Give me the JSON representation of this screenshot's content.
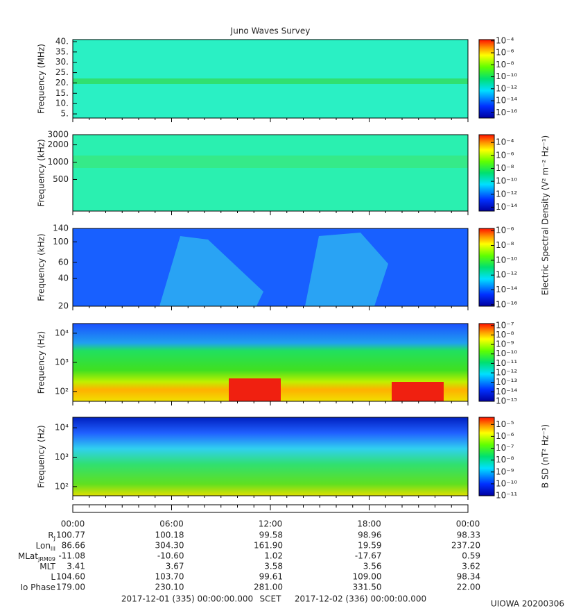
{
  "title": "Juno Waves Survey",
  "chart_data": [
    {
      "type": "spectrogram",
      "ylabel": "Frequency (MHz)",
      "yscale": "linear",
      "ylim": [
        3,
        41
      ],
      "yticks": [
        {
          "value": 5,
          "label": "5."
        },
        {
          "value": 10,
          "label": "10."
        },
        {
          "value": 15,
          "label": "15."
        },
        {
          "value": 20,
          "label": "20."
        },
        {
          "value": 25,
          "label": "25."
        },
        {
          "value": 30,
          "label": "30."
        },
        {
          "value": 35,
          "label": "35."
        },
        {
          "value": 40,
          "label": "40."
        }
      ],
      "clim": [
        1.3e-17,
        0.00016
      ],
      "cticks": [
        {
          "value": 0.0001,
          "label": "10⁻⁴"
        },
        {
          "value": 1e-06,
          "label": "10⁻⁶"
        },
        {
          "value": 1e-08,
          "label": "10⁻⁸"
        },
        {
          "value": 1e-10,
          "label": "10⁻¹⁰"
        },
        {
          "value": 1e-12,
          "label": "10⁻¹²"
        },
        {
          "value": 1e-14,
          "label": "10⁻¹⁴"
        },
        {
          "value": 1e-16,
          "label": "10⁻¹⁶"
        }
      ]
    },
    {
      "type": "spectrogram",
      "ylabel": "Frequency (kHz)",
      "yscale": "log",
      "ylim": [
        141,
        3000
      ],
      "yticks": [
        500,
        1000,
        2000,
        3000
      ],
      "clim": [
        2.5e-15,
        0.0016
      ],
      "cticks": [
        {
          "value": 0.0001,
          "label": "10⁻⁴"
        },
        {
          "value": 1e-06,
          "label": "10⁻⁶"
        },
        {
          "value": 1e-08,
          "label": "10⁻⁸"
        },
        {
          "value": 1e-10,
          "label": "10⁻¹⁰"
        },
        {
          "value": 1e-12,
          "label": "10⁻¹²"
        },
        {
          "value": 1e-14,
          "label": "10⁻¹⁴"
        }
      ],
      "clabel": "Electric Spectral Density (V² m⁻² Hz⁻¹)"
    },
    {
      "type": "spectrogram",
      "ylabel": "Frequency (kHz)",
      "yscale": "log",
      "ylim": [
        20,
        140
      ],
      "yticks": [
        20,
        40,
        60,
        100,
        140
      ],
      "clim": [
        6.3e-17,
        2e-06
      ],
      "cticks": [
        {
          "value": 1e-06,
          "label": "10⁻⁶"
        },
        {
          "value": 1e-08,
          "label": "10⁻⁸"
        },
        {
          "value": 1e-10,
          "label": "10⁻¹⁰"
        },
        {
          "value": 1e-12,
          "label": "10⁻¹²"
        },
        {
          "value": 1e-14,
          "label": "10⁻¹⁴"
        },
        {
          "value": 1e-16,
          "label": "10⁻¹⁶"
        }
      ]
    },
    {
      "type": "spectrogram",
      "ylabel": "Frequency (Hz)",
      "yscale": "log",
      "ylim": [
        46,
        21500
      ],
      "yticks": [
        {
          "value": 100,
          "label": "10²"
        },
        {
          "value": 1000,
          "label": "10³"
        },
        {
          "value": 10000,
          "label": "10⁴"
        }
      ],
      "clim": [
        1e-15,
        1.6e-07
      ],
      "cticks": [
        {
          "value": 1e-07,
          "label": "10⁻⁷"
        },
        {
          "value": 1e-08,
          "label": "10⁻⁸"
        },
        {
          "value": 1e-09,
          "label": "10⁻⁹"
        },
        {
          "value": 1e-10,
          "label": "10⁻¹⁰"
        },
        {
          "value": 1e-11,
          "label": "10⁻¹¹"
        },
        {
          "value": 1e-12,
          "label": "10⁻¹²"
        },
        {
          "value": 1e-13,
          "label": "10⁻¹³"
        },
        {
          "value": 1e-14,
          "label": "10⁻¹⁴"
        },
        {
          "value": 1e-15,
          "label": "10⁻¹⁵"
        }
      ]
    },
    {
      "type": "spectrogram",
      "ylabel": "Frequency (Hz)",
      "yscale": "log",
      "ylim": [
        49,
        22700
      ],
      "yticks": [
        {
          "value": 100,
          "label": "10²"
        },
        {
          "value": 1000,
          "label": "10³"
        },
        {
          "value": 10000,
          "label": "10⁴"
        }
      ],
      "clim": [
        1e-11,
        4e-05
      ],
      "cticks": [
        {
          "value": 1e-05,
          "label": "10⁻⁵"
        },
        {
          "value": 1e-06,
          "label": "10⁻⁶"
        },
        {
          "value": 1e-07,
          "label": "10⁻⁷"
        },
        {
          "value": 1e-08,
          "label": "10⁻⁸"
        },
        {
          "value": 1e-09,
          "label": "10⁻⁹"
        },
        {
          "value": 1e-10,
          "label": "10⁻¹⁰"
        },
        {
          "value": 1e-11,
          "label": "10⁻¹¹"
        }
      ],
      "clabel": "B SD (nT² Hz⁻¹)"
    }
  ],
  "time_ticks": [
    "00:00",
    "06:00",
    "12:00",
    "18:00",
    "00:00"
  ],
  "ephemeris": [
    {
      "label": "R",
      "sub": "J",
      "values": [
        "100.77",
        "100.18",
        "99.58",
        "98.96",
        "98.33"
      ]
    },
    {
      "label": "Lon",
      "sub": "III",
      "values": [
        "86.66",
        "304.30",
        "161.90",
        "19.59",
        "237.20"
      ]
    },
    {
      "label": "MLat",
      "sub": "JRM09",
      "values": [
        "-11.08",
        "-10.60",
        "1.02",
        "-17.67",
        "0.59"
      ]
    },
    {
      "label": "MLT",
      "values": [
        "3.41",
        "3.67",
        "3.58",
        "3.56",
        "3.62"
      ]
    },
    {
      "label": "L",
      "values": [
        "104.60",
        "103.70",
        "99.61",
        "109.00",
        "98.34"
      ]
    },
    {
      "label": "Io Phase",
      "values": [
        "179.00",
        "230.10",
        "281.00",
        "331.50",
        "22.00"
      ]
    }
  ],
  "footer": {
    "start": "2017-12-01 (335) 00:00:00.000",
    "center": "SCET",
    "end": "2017-12-02 (336) 00:00:00.000"
  },
  "stamp": "UIOWA 20200306"
}
